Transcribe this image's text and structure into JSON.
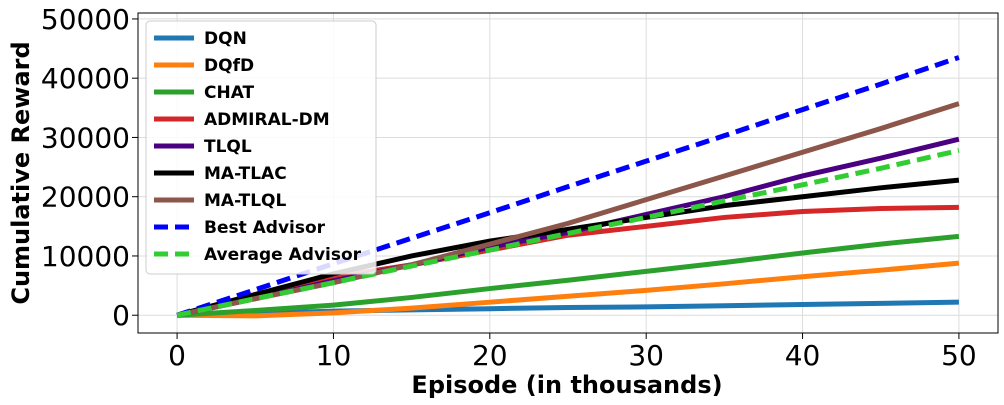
{
  "chart_data": {
    "type": "line",
    "xlabel": "Episode (in thousands)",
    "ylabel": "Cumulative Reward",
    "x": [
      0,
      5,
      10,
      15,
      20,
      25,
      30,
      35,
      40,
      45,
      50
    ],
    "xlim": [
      -2.5,
      52.5
    ],
    "xticks": [
      0,
      10,
      20,
      30,
      40,
      50
    ],
    "ylim": [
      -3000,
      51000
    ],
    "yticks": [
      0,
      10000,
      20000,
      30000,
      40000,
      50000
    ],
    "grid": true,
    "legend": "upper left",
    "series": [
      {
        "name": "DQN",
        "color": "#1f77b4",
        "linestyle": "solid",
        "values": [
          0,
          300,
          700,
          900,
          1100,
          1300,
          1400,
          1600,
          1800,
          2000,
          2200
        ]
      },
      {
        "name": "DQfD",
        "color": "#ff7f0e",
        "linestyle": "solid",
        "values": [
          0,
          -100,
          400,
          1200,
          2200,
          3200,
          4200,
          5300,
          6500,
          7600,
          8800
        ]
      },
      {
        "name": "CHAT",
        "color": "#2ca02c",
        "linestyle": "solid",
        "values": [
          0,
          800,
          1700,
          3000,
          4500,
          5900,
          7400,
          8900,
          10500,
          12000,
          13300
        ]
      },
      {
        "name": "ADMIRAL-DM",
        "color": "#d62728",
        "linestyle": "solid",
        "values": [
          0,
          3500,
          6500,
          8500,
          11000,
          13500,
          15000,
          16500,
          17500,
          18000,
          18200
        ]
      },
      {
        "name": "TLQL",
        "color": "#4b0082",
        "linestyle": "solid",
        "values": [
          0,
          2800,
          5800,
          8500,
          11500,
          14000,
          17000,
          20000,
          23500,
          26500,
          29700
        ]
      },
      {
        "name": "MA-TLAC",
        "color": "#000000",
        "linestyle": "solid",
        "values": [
          0,
          3500,
          7000,
          10000,
          12500,
          14500,
          16500,
          18500,
          20000,
          21500,
          22800
        ]
      },
      {
        "name": "MA-TLQL",
        "color": "#8c564b",
        "linestyle": "solid",
        "values": [
          0,
          2800,
          5500,
          8500,
          12000,
          15500,
          19500,
          23500,
          27500,
          31500,
          35700
        ]
      },
      {
        "name": "Best Advisor",
        "color": "#0000ff",
        "linestyle": "dashed",
        "values": [
          0,
          4300,
          8700,
          13000,
          17300,
          21700,
          26000,
          30300,
          34700,
          39000,
          43500
        ]
      },
      {
        "name": "Average Advisor",
        "color": "#32cd32",
        "linestyle": "dashed",
        "values": [
          0,
          2800,
          5500,
          8300,
          11000,
          13800,
          16500,
          19300,
          22000,
          24800,
          27800
        ]
      }
    ]
  }
}
